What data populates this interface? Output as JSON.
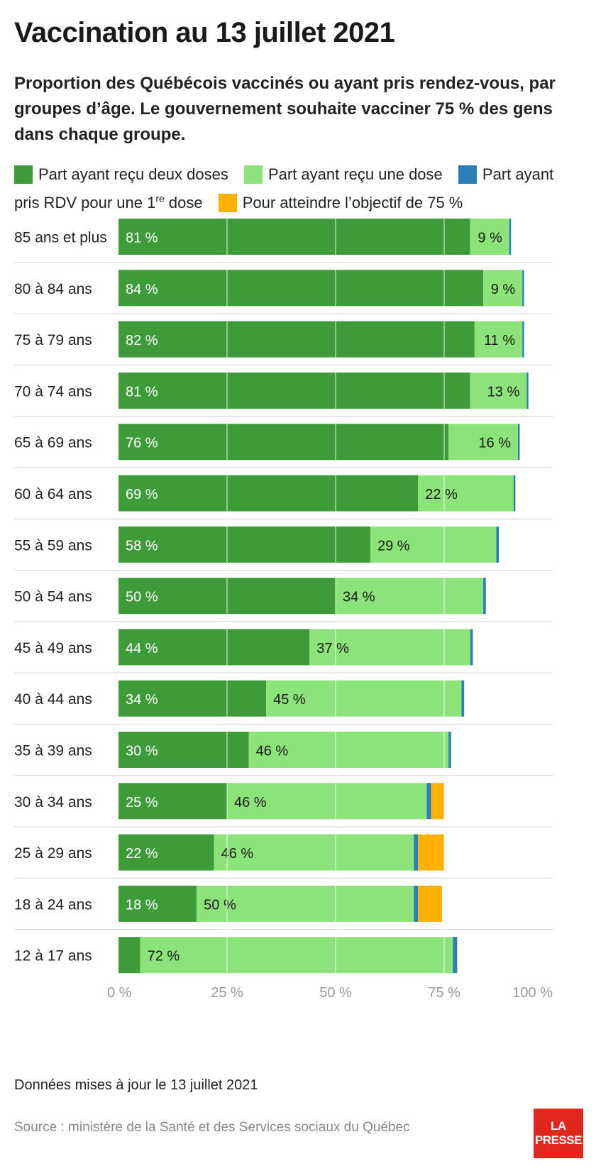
{
  "header": {
    "title": "Vaccination au 13 juillet 2021",
    "subtitle": "Proportion des Québécois vaccinés ou ayant pris rendez-vous, par groupes d’âge. Le gouvernement souhaite vacciner 75 % des gens dans chaque groupe."
  },
  "legend": {
    "two_doses": "Part ayant reçu deux doses",
    "one_dose": "Part ayant reçu une dose",
    "rdv_a": "Part ayant pris RDV pour une 1",
    "rdv_sup": "re",
    "rdv_b": " dose",
    "objective": "Pour atteindre l’objectif de 75 %"
  },
  "colors": {
    "two_doses": "#3e9b39",
    "one_dose": "#8ce37a",
    "rdv": "#2a7fb8",
    "objective": "#ffb000"
  },
  "chart_data": {
    "type": "bar",
    "orientation": "horizontal",
    "stacked": true,
    "unit": "%",
    "xlim": [
      0,
      100
    ],
    "x_ticks": [
      0,
      25,
      50,
      75,
      100
    ],
    "x_tick_labels": [
      "0 %",
      "25 %",
      "50 %",
      "75 %",
      "100 %"
    ],
    "grid": true,
    "categories": [
      "85 ans et plus",
      "80 à 84 ans",
      "75 à 79 ans",
      "70 à 74 ans",
      "65 à 69 ans",
      "60 à 64 ans",
      "55 à 59 ans",
      "50 à 54 ans",
      "45 à 49 ans",
      "40 à 44 ans",
      "35 à 39 ans",
      "30 à 34 ans",
      "25 à 29 ans",
      "18 à 24 ans",
      "12 à 17 ans"
    ],
    "series": [
      {
        "name": "Part ayant reçu deux doses",
        "values": [
          81,
          84,
          82,
          81,
          76,
          69,
          58,
          50,
          44,
          34,
          30,
          25,
          22,
          18,
          5
        ]
      },
      {
        "name": "Part ayant reçu une dose",
        "values": [
          9,
          9,
          11,
          13,
          16,
          22,
          29,
          34,
          37,
          45,
          46,
          46,
          46,
          50,
          72
        ]
      },
      {
        "name": "Part ayant pris RDV pour une 1re dose",
        "values": [
          0.4,
          0.4,
          0.4,
          0.4,
          0.4,
          0.4,
          0.6,
          0.6,
          0.6,
          0.6,
          0.6,
          1,
          1,
          1,
          1
        ]
      },
      {
        "name": "Pour atteindre l’objectif de 75 %",
        "values": [
          0,
          0,
          0,
          0,
          0,
          0,
          0,
          0,
          0,
          0,
          0,
          3,
          6,
          5.5,
          0
        ]
      }
    ],
    "labels_two_doses": [
      "81 %",
      "84 %",
      "82 %",
      "81 %",
      "76 %",
      "69 %",
      "58 %",
      "50 %",
      "44 %",
      "34 %",
      "30 %",
      "25 %",
      "22 %",
      "18 %",
      ""
    ],
    "labels_one_dose": [
      "9 %",
      "9 %",
      "11 %",
      "13 %",
      "16 %",
      "22 %",
      "29 %",
      "34 %",
      "37 %",
      "45 %",
      "46 %",
      "46 %",
      "46 %",
      "50 %",
      "72 %"
    ]
  },
  "footer": {
    "note": "Données mises à jour le 13 juillet 2021",
    "source": "Source : ministère de la Santé et des Services sociaux du Québec",
    "logo_line1": "LA",
    "logo_line2": "PRESSE"
  }
}
